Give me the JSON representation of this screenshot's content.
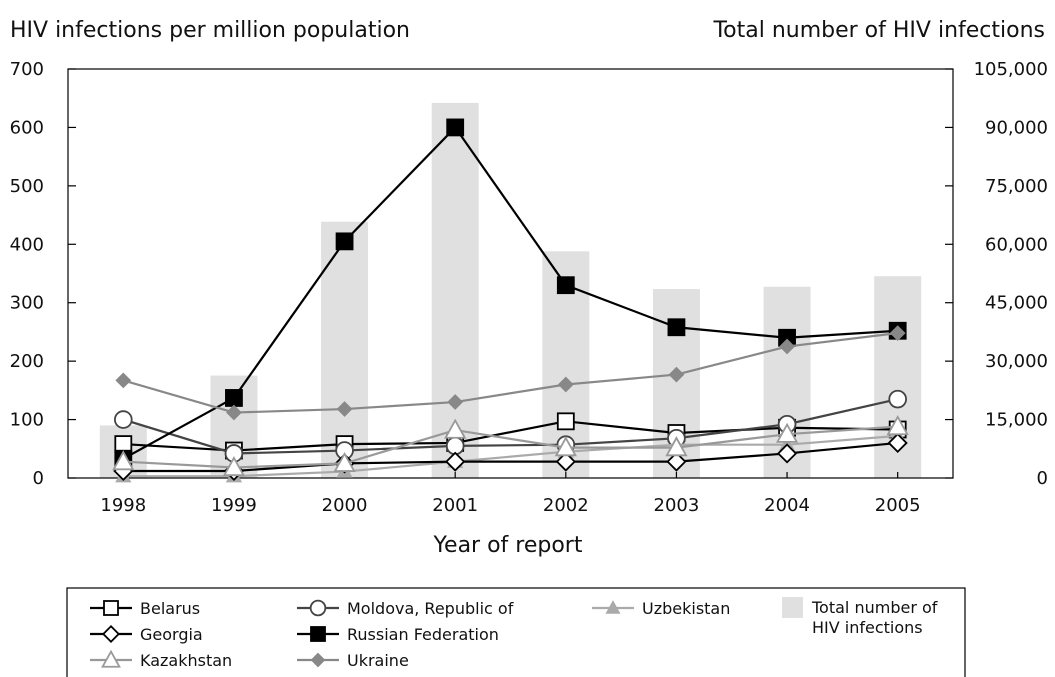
{
  "chart_data": {
    "type": "bar+line",
    "xlabel": "Year of report",
    "ylabel_left": "HIV infections per million population",
    "ylabel_right": "Total number of HIV infections",
    "categories": [
      "1998",
      "1999",
      "2000",
      "2001",
      "2002",
      "2003",
      "2004",
      "2005"
    ],
    "ylim_left": [
      0,
      700
    ],
    "ylim_right": [
      0,
      105000
    ],
    "yticks_left": [
      "0",
      "100",
      "200",
      "300",
      "400",
      "500",
      "600",
      "700"
    ],
    "yticks_right": [
      "0",
      "15,000",
      "30,000",
      "45,000",
      "60,000",
      "75,000",
      "90,000",
      "105,000"
    ],
    "bars": {
      "name": "Total number of HIV infections",
      "legend_label": [
        "Total number of",
        "HIV infections"
      ],
      "color": "#e0e0e0",
      "values": [
        13500,
        26300,
        65800,
        96300,
        58200,
        48500,
        49100,
        51800
      ]
    },
    "series": [
      {
        "name": "Belarus",
        "marker": "square-open",
        "color": "#000000",
        "values": [
          58,
          47,
          58,
          60,
          97,
          77,
          86,
          83
        ]
      },
      {
        "name": "Moldova, Republic of",
        "marker": "circle-open",
        "color": "#444444",
        "values": [
          100,
          42,
          47,
          55,
          57,
          68,
          92,
          135
        ]
      },
      {
        "name": "Uzbekistan",
        "marker": "triangle-filled",
        "color": "#aaaaaa",
        "values": [
          3,
          3,
          11,
          28,
          45,
          57,
          57,
          72
        ]
      },
      {
        "name": "Georgia",
        "marker": "diamond-open",
        "color": "#000000",
        "values": [
          12,
          12,
          25,
          28,
          28,
          28,
          42,
          60
        ]
      },
      {
        "name": "Russian Federation",
        "marker": "square-filled",
        "color": "#000000",
        "values": [
          33,
          137,
          405,
          600,
          330,
          258,
          240,
          252
        ]
      },
      {
        "name": "Kazakhstan",
        "marker": "triangle-open",
        "color": "#999999",
        "values": [
          28,
          18,
          25,
          82,
          52,
          52,
          75,
          88
        ]
      },
      {
        "name": "Ukraine",
        "marker": "diamond-filled",
        "color": "#888888",
        "values": [
          167,
          112,
          118,
          130,
          160,
          177,
          225,
          248
        ]
      }
    ],
    "legend_placement": "bottom",
    "grid": false
  }
}
